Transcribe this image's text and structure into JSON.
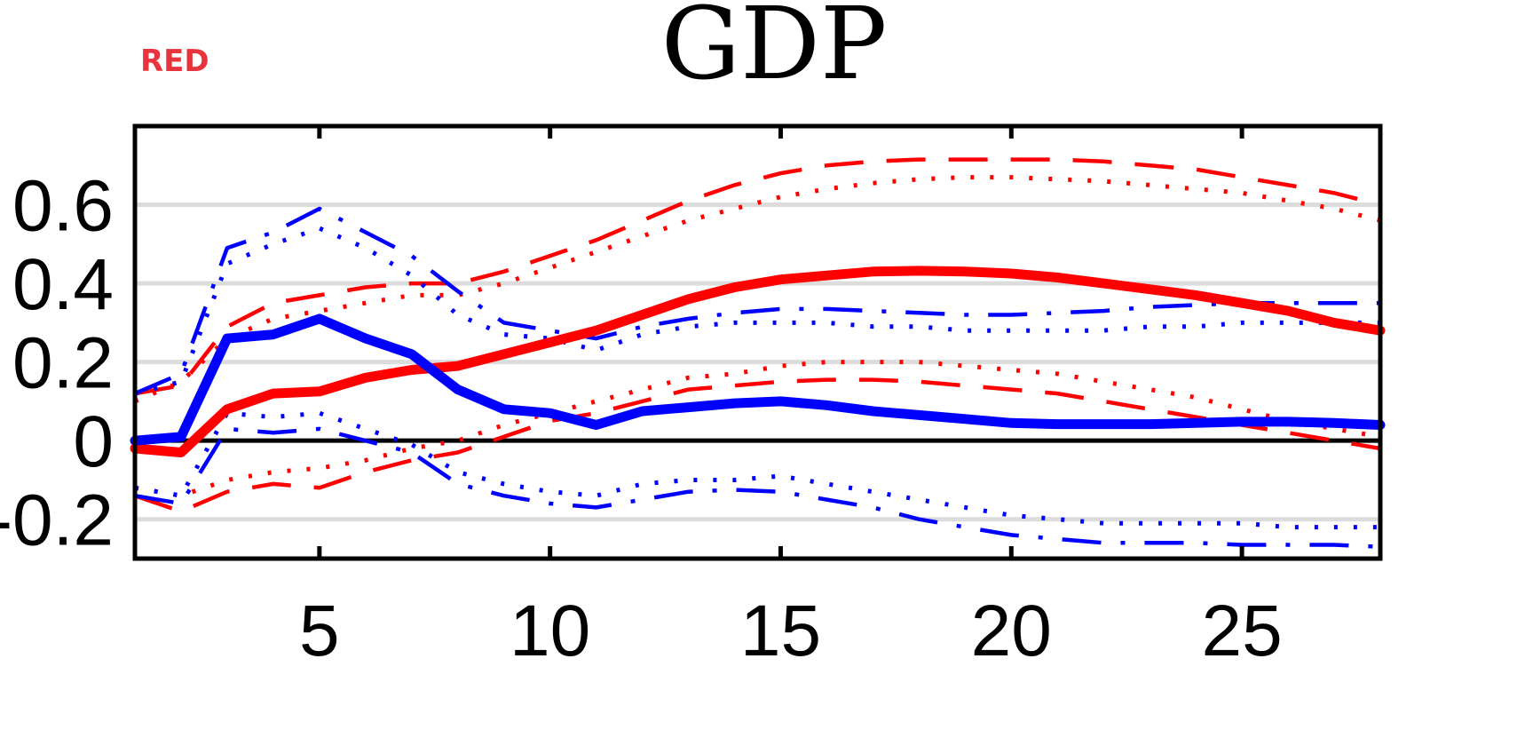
{
  "chart_data": {
    "type": "line",
    "title": "GDP",
    "annotation": {
      "text": "RED",
      "color": "#e8343c"
    },
    "xlabel": "",
    "ylabel": "",
    "xlim": [
      1,
      28
    ],
    "ylim": [
      -0.3,
      0.8
    ],
    "x_ticks": [
      5,
      10,
      15,
      20,
      25
    ],
    "x_tick_labels": [
      "5",
      "10",
      "15",
      "20",
      "25"
    ],
    "y_ticks": [
      -0.2,
      0,
      0.2,
      0.4,
      0.6
    ],
    "y_tick_labels": [
      "-0.2",
      "0",
      "0.2",
      "0.4",
      "0.6"
    ],
    "grid": "horizontal",
    "zero_line": true,
    "legend": "none",
    "x": [
      1,
      2,
      3,
      4,
      5,
      6,
      7,
      8,
      9,
      10,
      11,
      12,
      13,
      14,
      15,
      16,
      17,
      18,
      19,
      20,
      21,
      22,
      23,
      24,
      25,
      26,
      27,
      28
    ],
    "series": [
      {
        "color": "#ff0000",
        "style": "solid-thick",
        "values": [
          -0.02,
          -0.03,
          0.08,
          0.12,
          0.125,
          0.16,
          0.18,
          0.19,
          0.22,
          0.25,
          0.28,
          0.32,
          0.36,
          0.39,
          0.41,
          0.42,
          0.43,
          0.432,
          0.43,
          0.425,
          0.415,
          0.4,
          0.385,
          0.37,
          0.35,
          0.33,
          0.3,
          0.28
        ]
      },
      {
        "color": "#ff0000",
        "style": "dashed",
        "values": [
          0.12,
          0.14,
          0.29,
          0.35,
          0.37,
          0.39,
          0.4,
          0.4,
          0.43,
          0.47,
          0.51,
          0.56,
          0.61,
          0.65,
          0.68,
          0.7,
          0.71,
          0.715,
          0.715,
          0.715,
          0.715,
          0.71,
          0.7,
          0.69,
          0.67,
          0.65,
          0.63,
          0.6
        ]
      },
      {
        "color": "#ff0000",
        "style": "dotted",
        "values": [
          0.1,
          0.15,
          0.26,
          0.31,
          0.33,
          0.35,
          0.37,
          0.37,
          0.4,
          0.44,
          0.48,
          0.52,
          0.56,
          0.59,
          0.62,
          0.64,
          0.655,
          0.665,
          0.67,
          0.67,
          0.665,
          0.66,
          0.65,
          0.64,
          0.63,
          0.61,
          0.59,
          0.56
        ]
      },
      {
        "color": "#ff0000",
        "style": "dashed",
        "values": [
          -0.14,
          -0.18,
          -0.13,
          -0.11,
          -0.12,
          -0.08,
          -0.05,
          -0.03,
          0.01,
          0.05,
          0.07,
          0.1,
          0.13,
          0.14,
          0.15,
          0.155,
          0.155,
          0.15,
          0.14,
          0.13,
          0.12,
          0.1,
          0.08,
          0.06,
          0.04,
          0.02,
          0.0,
          -0.02
        ]
      },
      {
        "color": "#ff0000",
        "style": "dotted",
        "values": [
          -0.12,
          -0.14,
          -0.1,
          -0.08,
          -0.07,
          -0.05,
          -0.02,
          0.0,
          0.04,
          0.07,
          0.1,
          0.13,
          0.16,
          0.17,
          0.19,
          0.2,
          0.2,
          0.2,
          0.19,
          0.18,
          0.17,
          0.15,
          0.13,
          0.11,
          0.08,
          0.05,
          0.03,
          0.01
        ]
      },
      {
        "color": "#0000ff",
        "style": "solid-thick",
        "values": [
          0.0,
          0.01,
          0.26,
          0.27,
          0.31,
          0.26,
          0.22,
          0.13,
          0.08,
          0.07,
          0.04,
          0.075,
          0.085,
          0.095,
          0.1,
          0.09,
          0.075,
          0.065,
          0.055,
          0.045,
          0.042,
          0.042,
          0.042,
          0.045,
          0.048,
          0.048,
          0.045,
          0.04
        ]
      },
      {
        "color": "#0000ff",
        "style": "dash-dot",
        "values": [
          0.12,
          0.17,
          0.49,
          0.53,
          0.59,
          0.53,
          0.47,
          0.38,
          0.3,
          0.28,
          0.26,
          0.29,
          0.31,
          0.325,
          0.335,
          0.335,
          0.33,
          0.325,
          0.32,
          0.32,
          0.325,
          0.33,
          0.34,
          0.345,
          0.35,
          0.35,
          0.35,
          0.35
        ]
      },
      {
        "color": "#0000ff",
        "style": "dotted",
        "values": [
          0.12,
          0.15,
          0.45,
          0.5,
          0.54,
          0.49,
          0.42,
          0.32,
          0.27,
          0.26,
          0.23,
          0.27,
          0.29,
          0.3,
          0.3,
          0.3,
          0.29,
          0.29,
          0.28,
          0.28,
          0.28,
          0.28,
          0.29,
          0.29,
          0.3,
          0.3,
          0.3,
          0.3
        ]
      },
      {
        "color": "#0000ff",
        "style": "dash-dot",
        "values": [
          -0.14,
          -0.16,
          0.03,
          0.02,
          0.03,
          0.0,
          -0.03,
          -0.11,
          -0.14,
          -0.16,
          -0.17,
          -0.15,
          -0.13,
          -0.125,
          -0.13,
          -0.15,
          -0.17,
          -0.2,
          -0.22,
          -0.24,
          -0.25,
          -0.26,
          -0.26,
          -0.26,
          -0.265,
          -0.265,
          -0.265,
          -0.27
        ]
      },
      {
        "color": "#0000ff",
        "style": "dotted",
        "values": [
          -0.12,
          -0.14,
          0.07,
          0.06,
          0.07,
          0.03,
          -0.01,
          -0.08,
          -0.11,
          -0.13,
          -0.14,
          -0.11,
          -0.1,
          -0.1,
          -0.09,
          -0.11,
          -0.13,
          -0.15,
          -0.17,
          -0.19,
          -0.2,
          -0.21,
          -0.21,
          -0.21,
          -0.21,
          -0.22,
          -0.22,
          -0.22
        ]
      }
    ]
  }
}
